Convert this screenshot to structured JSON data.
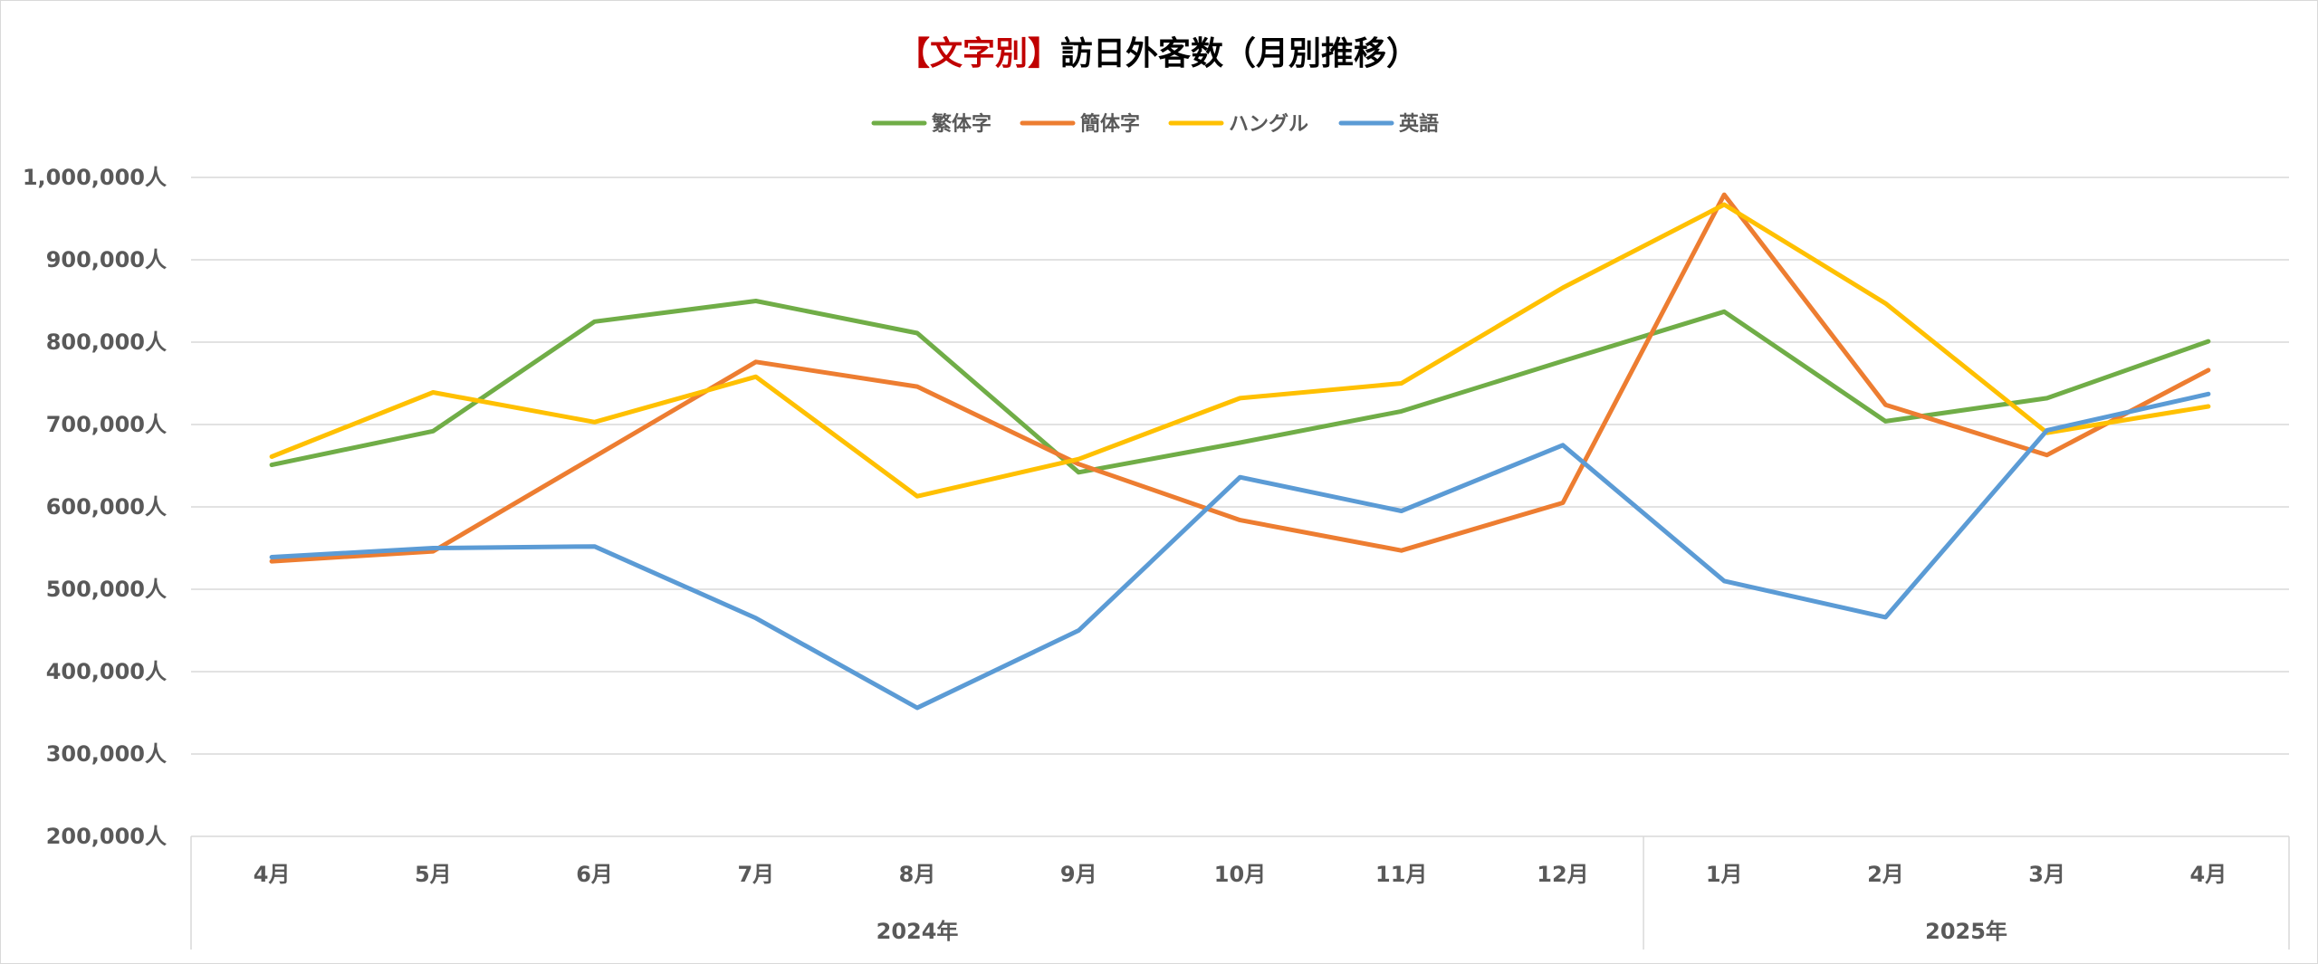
{
  "chart_data": {
    "type": "line",
    "title_parts": {
      "highlight": "【文字別】",
      "rest": "訪日外客数（月別推移）"
    },
    "categories": [
      "4月",
      "5月",
      "6月",
      "7月",
      "8月",
      "9月",
      "10月",
      "11月",
      "12月",
      "1月",
      "2月",
      "3月",
      "4月"
    ],
    "year_groups": [
      {
        "label": "2024年",
        "count": 9
      },
      {
        "label": "2025年",
        "count": 4
      }
    ],
    "ylim": [
      200000,
      1000000
    ],
    "yticks": [
      1000000,
      900000,
      800000,
      700000,
      600000,
      500000,
      400000,
      300000,
      200000
    ],
    "ytick_labels": [
      "1,000,000人",
      "900,000人",
      "800,000人",
      "700,000人",
      "600,000人",
      "500,000人",
      "400,000人",
      "300,000人",
      "200,000人"
    ],
    "grid": true,
    "legend_position": "top-center",
    "series": [
      {
        "name": "繁体字",
        "color": "#70ad47",
        "values": [
          651000,
          692000,
          825000,
          850000,
          811000,
          642000,
          678000,
          716000,
          777000,
          837000,
          704000,
          732000,
          801000
        ]
      },
      {
        "name": "簡体字",
        "color": "#ed7d31",
        "values": [
          534000,
          546000,
          661000,
          776000,
          746000,
          652000,
          584000,
          547000,
          605000,
          979000,
          724000,
          663000,
          766000
        ]
      },
      {
        "name": "ハングル",
        "color": "#ffc000",
        "values": [
          661000,
          739000,
          703000,
          758000,
          613000,
          658000,
          732000,
          750000,
          866000,
          967000,
          847000,
          690000,
          722000
        ]
      },
      {
        "name": "英語",
        "color": "#5b9bd5",
        "values": [
          539000,
          550000,
          552000,
          465000,
          356000,
          450000,
          636000,
          595000,
          675000,
          510000,
          466000,
          693000,
          737000
        ]
      }
    ],
    "title_highlight_color": "#c00000",
    "title_color": "#000000"
  }
}
